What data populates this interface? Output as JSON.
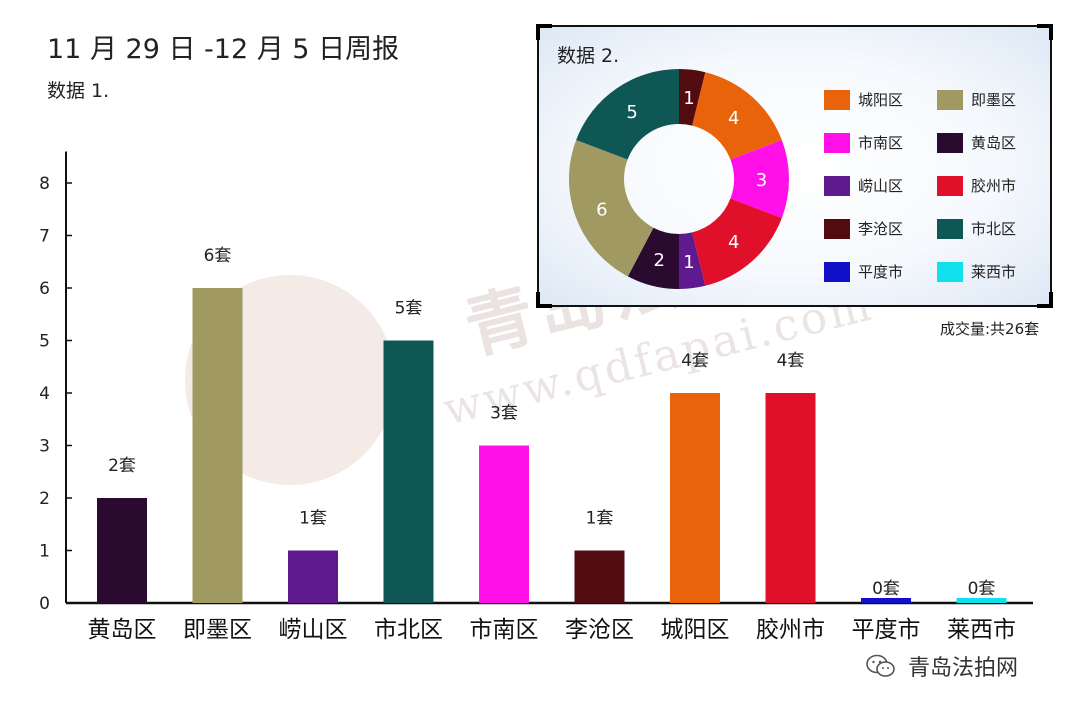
{
  "header": {
    "title": "11 月 29 日 -12 月 5 日周报",
    "subtitle1": "数据 1."
  },
  "watermark": {
    "text": "青岛法拍网",
    "url": "www.qdfapai.com"
  },
  "chart_data": [
    {
      "type": "bar",
      "categories": [
        "黄岛区",
        "即墨区",
        "崂山区",
        "市北区",
        "市南区",
        "李沧区",
        "城阳区",
        "胶州市",
        "平度市",
        "莱西市"
      ],
      "values": [
        2,
        6,
        1,
        5,
        3,
        1,
        4,
        4,
        0,
        0
      ],
      "data_labels": [
        "2套",
        "6套",
        "1套",
        "5套",
        "3套",
        "1套",
        "4套",
        "4套",
        "0套",
        "0套"
      ],
      "colors": [
        "#2a0a2e",
        "#a09a62",
        "#5e1a8e",
        "#0f5754",
        "#ff10e8",
        "#520c10",
        "#e9630a",
        "#e0102a",
        "#1010c8",
        "#10e0ee"
      ],
      "yticks": [
        0,
        1,
        2,
        3,
        4,
        5,
        6,
        7,
        8
      ],
      "ylim": [
        0,
        8.6
      ],
      "grid": false
    },
    {
      "type": "pie",
      "title": "数据 2.",
      "slices": [
        {
          "name": "李沧区",
          "value": 1,
          "color": "#520c10"
        },
        {
          "name": "城阳区",
          "value": 4,
          "color": "#e9630a"
        },
        {
          "name": "市南区",
          "value": 3,
          "color": "#ff10e8"
        },
        {
          "name": "胶州市",
          "value": 4,
          "color": "#e0102a"
        },
        {
          "name": "崂山区",
          "value": 1,
          "color": "#5e1a8e"
        },
        {
          "name": "黄岛区",
          "value": 2,
          "color": "#2a0a2e"
        },
        {
          "name": "即墨区",
          "value": 6,
          "color": "#a09a62"
        },
        {
          "name": "市北区",
          "value": 5,
          "color": "#0f5754"
        }
      ],
      "legend": [
        {
          "name": "城阳区",
          "color": "#e9630a"
        },
        {
          "name": "即墨区",
          "color": "#a09a62"
        },
        {
          "name": "市南区",
          "color": "#ff10e8"
        },
        {
          "name": "黄岛区",
          "color": "#2a0a2e"
        },
        {
          "name": "崂山区",
          "color": "#5e1a8e"
        },
        {
          "name": "胶州市",
          "color": "#e0102a"
        },
        {
          "name": "李沧区",
          "color": "#520c10"
        },
        {
          "name": "市北区",
          "color": "#0f5754"
        },
        {
          "name": "平度市",
          "color": "#1010c8"
        },
        {
          "name": "莱西市",
          "color": "#10e0ee"
        }
      ],
      "legend_position": "right",
      "total_label": "成交量:共26套"
    }
  ],
  "footer": {
    "account_name": "青岛法拍网",
    "icon": "wechat-icon"
  }
}
